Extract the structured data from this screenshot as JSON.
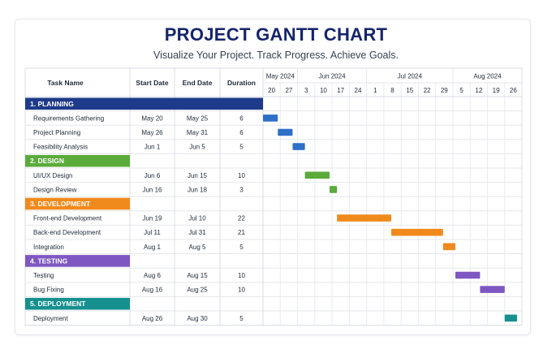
{
  "header": {
    "title": "PROJECT GANTT CHART",
    "subtitle": "Visualize Your Project. Track Progress. Achieve Goals."
  },
  "table": {
    "columns": [
      "Task Name",
      "Start Date",
      "End Date",
      "Duration"
    ]
  },
  "timeline": {
    "months": [
      "May 2024",
      "Jun 2024",
      "Jul 2024",
      "Aug 2024"
    ],
    "weeks": [
      "20",
      "27",
      "3",
      "10",
      "17",
      "24",
      "1",
      "8",
      "15",
      "22",
      "29",
      "5",
      "12",
      "19",
      "26"
    ],
    "week_month_index": [
      0,
      0,
      1,
      1,
      1,
      1,
      2,
      2,
      2,
      2,
      2,
      3,
      3,
      3,
      3
    ]
  },
  "chart_data": {
    "type": "gantt",
    "title": "PROJECT GANTT CHART",
    "subtitle": "Visualize Your Project. Track Progress. Achieve Goals.",
    "x_range": [
      "2024-05-20",
      "2024-09-02"
    ],
    "phases": [
      {
        "name": "1. PLANNING",
        "color": "#1e3a8a",
        "tasks": [
          {
            "name": "Requirements Gathering",
            "start": "May 20",
            "end": "May 25",
            "duration": "6",
            "start_date": "2024-05-20",
            "end_date": "2024-05-25",
            "color": "#2e6fc8"
          },
          {
            "name": "Project Planning",
            "start": "May 26",
            "end": "May 31",
            "duration": "6",
            "start_date": "2024-05-26",
            "end_date": "2024-05-31",
            "color": "#2e6fc8"
          },
          {
            "name": "Feasibility Analysis",
            "start": "Jun 1",
            "end": "Jun 5",
            "duration": "5",
            "start_date": "2024-06-01",
            "end_date": "2024-06-05",
            "color": "#2e6fc8"
          }
        ]
      },
      {
        "name": "2. DESIGN",
        "color": "#5aab3a",
        "tasks": [
          {
            "name": "UI/UX Design",
            "start": "Jun 6",
            "end": "Jun 15",
            "duration": "10",
            "start_date": "2024-06-06",
            "end_date": "2024-06-15",
            "color": "#5aab3a"
          },
          {
            "name": "Design Review",
            "start": "Jun 16",
            "end": "Jun 18",
            "duration": "3",
            "start_date": "2024-06-16",
            "end_date": "2024-06-18",
            "color": "#5aab3a"
          }
        ]
      },
      {
        "name": "3. DEVELOPMENT",
        "color": "#f08a1c",
        "tasks": [
          {
            "name": "Front-end Development",
            "start": "Jun 19",
            "end": "Jul 10",
            "duration": "22",
            "start_date": "2024-06-19",
            "end_date": "2024-07-10",
            "color": "#f08a1c"
          },
          {
            "name": "Back-end Development",
            "start": "Jul 11",
            "end": "Jul 31",
            "duration": "21",
            "start_date": "2024-07-11",
            "end_date": "2024-07-31",
            "color": "#f08a1c"
          },
          {
            "name": "Integration",
            "start": "Aug 1",
            "end": "Aug 5",
            "duration": "5",
            "start_date": "2024-08-01",
            "end_date": "2024-08-05",
            "color": "#f08a1c"
          }
        ]
      },
      {
        "name": "4. TESTING",
        "color": "#7e57c2",
        "tasks": [
          {
            "name": "Testing",
            "start": "Aug 6",
            "end": "Aug 15",
            "duration": "10",
            "start_date": "2024-08-06",
            "end_date": "2024-08-15",
            "color": "#7e57c2"
          },
          {
            "name": "Bug Fixing",
            "start": "Aug 16",
            "end": "Aug 25",
            "duration": "10",
            "start_date": "2024-08-16",
            "end_date": "2024-08-25",
            "color": "#7e57c2"
          }
        ]
      },
      {
        "name": "5. DEPLOYMENT",
        "color": "#16908f",
        "tasks": [
          {
            "name": "Deployment",
            "start": "Aug 26",
            "end": "Aug 30",
            "duration": "5",
            "start_date": "2024-08-26",
            "end_date": "2024-08-30",
            "color": "#16908f"
          }
        ]
      }
    ]
  }
}
